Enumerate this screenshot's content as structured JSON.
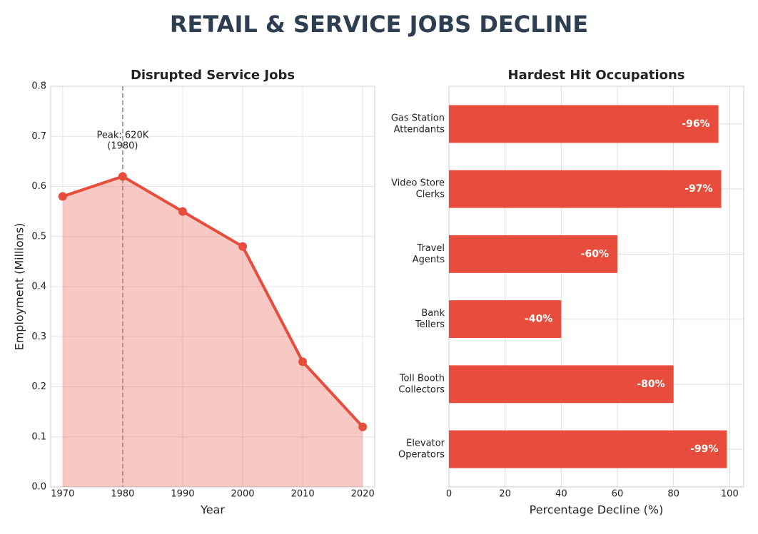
{
  "title": "RETAIL & SERVICE JOBS DECLINE",
  "chart_data": [
    {
      "type": "line",
      "title": "Disrupted Service Jobs",
      "x_label": "Year",
      "y_label": "Employment (Millions)",
      "x": [
        1970,
        1980,
        1990,
        2000,
        2010,
        2020
      ],
      "values": [
        0.58,
        0.62,
        0.55,
        0.48,
        0.25,
        0.12
      ],
      "color": "#e74c3c",
      "area": true,
      "xlim": [
        1968,
        2022
      ],
      "xticks": [
        1970,
        1980,
        1990,
        2000,
        2010,
        2020
      ],
      "ylim": [
        0,
        0.8
      ],
      "yticks": [
        {
          "value": 0,
          "label": "0.0"
        },
        0.1,
        0.2,
        0.3,
        0.4,
        0.5,
        0.6,
        0.7,
        0.8
      ],
      "grid": true,
      "annotation": {
        "lines": [
          "Peak: 620K",
          "(1980)"
        ],
        "x": 1980
      }
    },
    {
      "type": "hbar",
      "title": "Hardest Hit Occupations",
      "x_label": "Percentage Decline (%)",
      "categories": [
        [
          "Gas Station",
          "Attendants"
        ],
        [
          "Video Store",
          "Clerks"
        ],
        [
          "Travel",
          "Agents"
        ],
        [
          "Bank",
          "Tellers"
        ],
        [
          "Toll Booth",
          "Collectors"
        ],
        [
          "Elevator",
          "Operators"
        ]
      ],
      "values": [
        96,
        97,
        60,
        40,
        80,
        99
      ],
      "value_labels": [
        "-96%",
        "-97%",
        "-60%",
        "-40%",
        "-80%",
        "-99%"
      ],
      "color": "#e74c3c",
      "xlim": [
        0,
        105
      ],
      "xticks": [
        0,
        20,
        40,
        60,
        80,
        100
      ],
      "grid": true
    }
  ]
}
